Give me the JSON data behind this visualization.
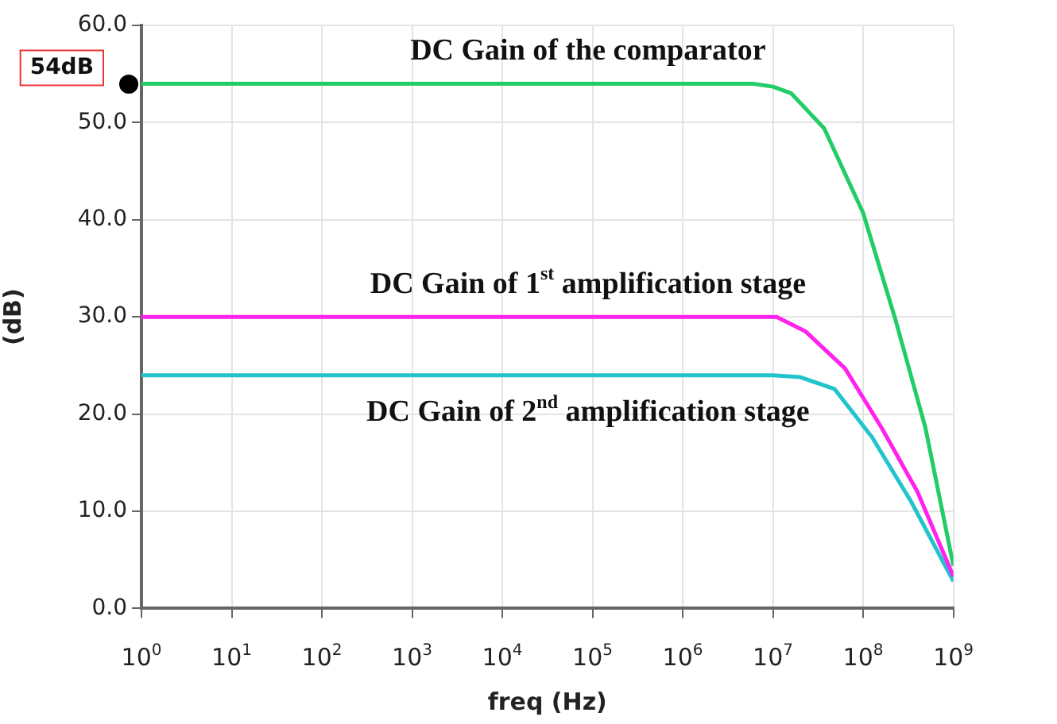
{
  "chart_data": {
    "type": "line",
    "xlabel": "freq (Hz)",
    "ylabel": "(dB)",
    "log": "x",
    "grid": true,
    "legend": false,
    "marker": "none",
    "line_style": "solid",
    "xlim": [
      1,
      1000000000
    ],
    "xticks": [
      {
        "value": 1,
        "label": "10$^{0}$"
      },
      {
        "value": 10,
        "label": "10$^{1}$"
      },
      {
        "value": 100,
        "label": "10$^{2}$"
      },
      {
        "value": 1000,
        "label": "10$^{3}$"
      },
      {
        "value": 10000,
        "label": "10$^{4}$"
      },
      {
        "value": 100000,
        "label": "10$^{5}$"
      },
      {
        "value": 1000000,
        "label": "10$^{6}$"
      },
      {
        "value": 10000000,
        "label": "10$^{7}$"
      },
      {
        "value": 100000000,
        "label": "10$^{8}$"
      },
      {
        "value": 1000000000,
        "label": "10$^{9}$"
      }
    ],
    "ylim": [
      0,
      60
    ],
    "yticks": [
      {
        "value": 0,
        "label": "0.0"
      },
      {
        "value": 10,
        "label": "10.0"
      },
      {
        "value": 20,
        "label": "20.0"
      },
      {
        "value": 30,
        "label": "30.0"
      },
      {
        "value": 40,
        "label": "40.0"
      },
      {
        "value": 50,
        "label": "50.0"
      },
      {
        "value": 60,
        "label": "60.0"
      }
    ],
    "series": [
      {
        "name": "DC Gain of the comparator",
        "color": "#22cc66",
        "x": [
          1,
          6000000,
          10000000,
          16000000,
          37000000,
          100000000,
          230000000,
          490000000,
          1000000000
        ],
        "values": [
          54,
          54,
          53.7,
          53,
          49.4,
          40.7,
          29.6,
          18.6,
          4.4
        ]
      },
      {
        "name": "DC Gain of 1$^{st}$ amplification stage",
        "color": "#ff22ee",
        "x": [
          1,
          5000000,
          11000000,
          23000000,
          63000000,
          160000000,
          400000000,
          1000000000
        ],
        "values": [
          30,
          30,
          30,
          28.5,
          24.7,
          18.6,
          12,
          3.3
        ]
      },
      {
        "name": "DC Gain of 2$^{nd}$ amplification stage",
        "color": "#22c4cc",
        "x": [
          1,
          10000000,
          20000000,
          48000000,
          126000000,
          340000000,
          1000000000
        ],
        "values": [
          24,
          24,
          23.8,
          22.6,
          17.6,
          11,
          2.8
        ]
      }
    ],
    "annotations": [
      {
        "text": "54dB",
        "x": 1,
        "y": 54
      }
    ]
  }
}
